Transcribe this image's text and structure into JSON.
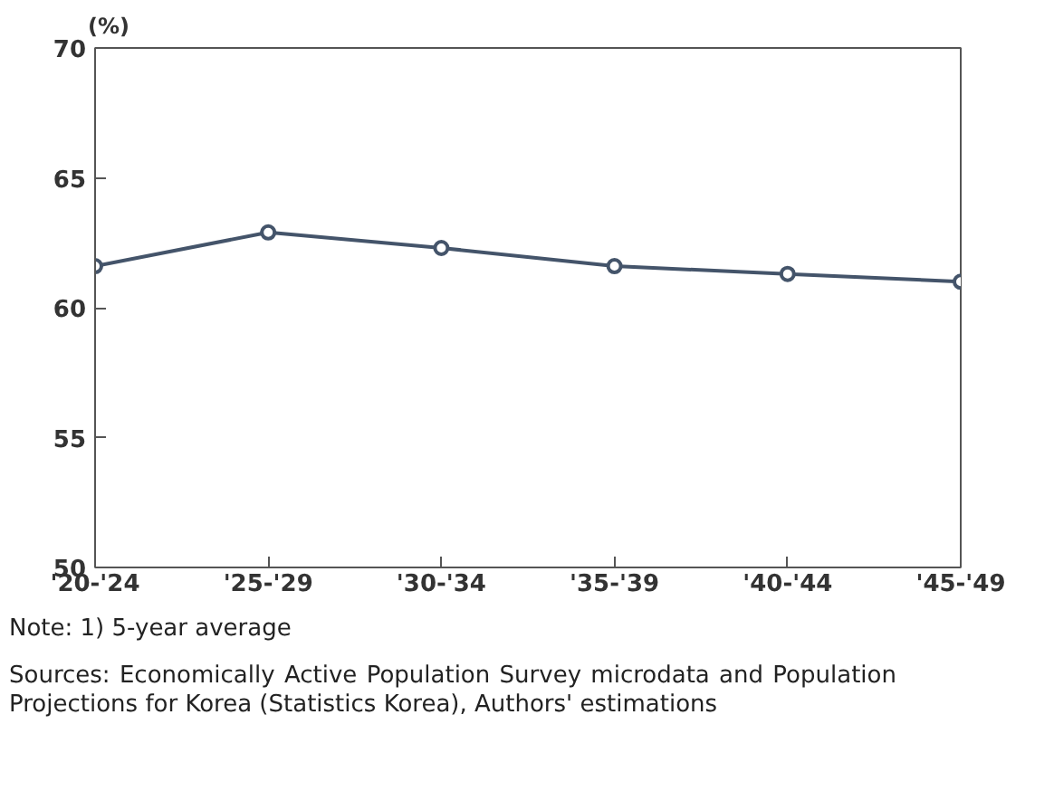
{
  "chart_data": {
    "type": "line",
    "ylabel": "(%)",
    "categories": [
      "'20-'24",
      "'25-'29",
      "'30-'34",
      "'35-'39",
      "'40-'44",
      "'45-'49"
    ],
    "series": [
      {
        "color": "#44546a",
        "values": [
          61.6,
          62.9,
          62.3,
          61.6,
          61.3,
          61.0
        ]
      }
    ],
    "ylim": [
      50,
      70
    ],
    "yticks": [
      50,
      55,
      60,
      65,
      70
    ],
    "grid": false,
    "marker": "circle",
    "line_style": "solid",
    "annotations": [
      "Note: 1) 5-year average",
      "Sources: Economically Active Population Survey microdata and Population Projections for Korea (Statistics Korea), Authors' estimations"
    ]
  }
}
